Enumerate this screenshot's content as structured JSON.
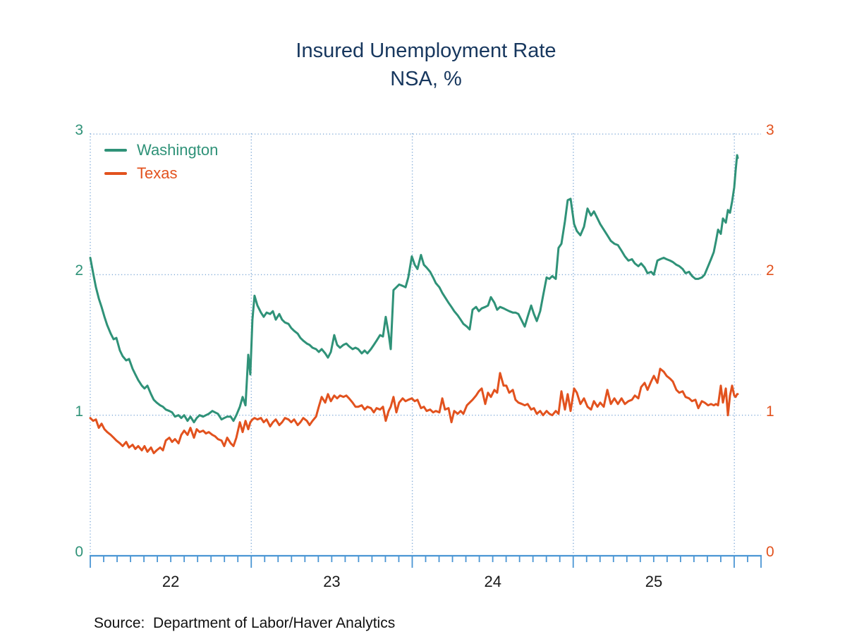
{
  "title": {
    "line1": "Insured Unemployment Rate",
    "line2": "NSA, %"
  },
  "legend": {
    "items": [
      {
        "label": "Washington",
        "color": "#2F9278"
      },
      {
        "label": "Texas",
        "color": "#E2521E"
      }
    ]
  },
  "axes": {
    "y_tick_labels": [
      "0",
      "1",
      "2",
      "3"
    ],
    "y_tick_values": [
      0,
      1,
      2,
      3
    ],
    "x_tick_labels": [
      "22",
      "23",
      "24",
      "25"
    ],
    "left_label_color": "#2F9278",
    "right_label_color": "#E2521E"
  },
  "source": {
    "text": "Source:  Department of Labor/Haver Analytics"
  },
  "colors": {
    "title": "#17375E",
    "axis_line": "#4B96D4",
    "grid_dotted": "#7CA7D6",
    "washington": "#2F9278",
    "texas": "#E2521E",
    "year_labels": "#1a1a1a"
  },
  "chart_data": {
    "type": "line",
    "title": "Insured Unemployment Rate",
    "subtitle": "NSA, %",
    "xlabel": "",
    "ylabel": "NSA, %",
    "xlim": [
      2022.0,
      2026.17
    ],
    "ylim": [
      0,
      3
    ],
    "y_ticks": [
      0,
      1,
      2,
      3
    ],
    "x_gridline_years": [
      2022,
      2023,
      2024,
      2025,
      2026
    ],
    "grid": "dotted",
    "legend_position": "top-left",
    "frequency": "weekly",
    "x": [
      2022.0,
      2022.018,
      2022.035,
      2022.053,
      2022.07,
      2022.088,
      2022.105,
      2022.127,
      2022.145,
      2022.162,
      2022.184,
      2022.201,
      2022.223,
      2022.241,
      2022.263,
      2022.28,
      2022.298,
      2022.32,
      2022.337,
      2022.355,
      2022.377,
      2022.394,
      2022.412,
      2022.434,
      2022.451,
      2022.469,
      2022.491,
      2022.508,
      2022.526,
      2022.548,
      2022.565,
      2022.583,
      2022.604,
      2022.622,
      2022.644,
      2022.661,
      2022.679,
      2022.701,
      2022.718,
      2022.736,
      2022.758,
      2022.775,
      2022.793,
      2022.815,
      2022.832,
      2022.85,
      2022.872,
      2022.889,
      2022.907,
      2022.929,
      2022.946,
      2022.964,
      2022.981,
      2022.994,
      2023.007,
      2023.02,
      2023.038,
      2023.06,
      2023.077,
      2023.095,
      2023.117,
      2023.134,
      2023.152,
      2023.174,
      2023.191,
      2023.209,
      2023.231,
      2023.248,
      2023.266,
      2023.288,
      2023.305,
      2023.323,
      2023.345,
      2023.362,
      2023.38,
      2023.402,
      2023.419,
      2023.437,
      2023.459,
      2023.476,
      2023.494,
      2023.515,
      2023.533,
      2023.551,
      2023.572,
      2023.59,
      2023.607,
      2023.629,
      2023.647,
      2023.664,
      2023.686,
      2023.704,
      2023.721,
      2023.743,
      2023.761,
      2023.778,
      2023.8,
      2023.818,
      2023.835,
      2023.853,
      2023.866,
      2023.883,
      2023.901,
      2023.918,
      2023.94,
      2023.958,
      2023.975,
      2023.997,
      2024.015,
      2024.032,
      2024.054,
      2024.072,
      2024.089,
      2024.111,
      2024.129,
      2024.146,
      2024.168,
      2024.186,
      2024.203,
      2024.225,
      2024.243,
      2024.26,
      2024.282,
      2024.3,
      2024.317,
      2024.339,
      2024.356,
      2024.374,
      2024.396,
      2024.413,
      2024.431,
      2024.453,
      2024.47,
      2024.488,
      2024.51,
      2024.527,
      2024.545,
      2024.567,
      2024.584,
      2024.602,
      2024.624,
      2024.641,
      2024.659,
      2024.681,
      2024.698,
      2024.716,
      2024.738,
      2024.755,
      2024.773,
      2024.794,
      2024.812,
      2024.834,
      2024.851,
      2024.869,
      2024.891,
      2024.908,
      2024.926,
      2024.948,
      2024.965,
      2024.983,
      2025.005,
      2025.022,
      2025.044,
      2025.066,
      2025.088,
      2025.11,
      2025.128,
      2025.15,
      2025.167,
      2025.189,
      2025.211,
      2025.233,
      2025.255,
      2025.277,
      2025.299,
      2025.32,
      2025.342,
      2025.364,
      2025.382,
      2025.404,
      2025.421,
      2025.443,
      2025.461,
      2025.483,
      2025.5,
      2025.522,
      2025.539,
      2025.561,
      2025.579,
      2025.601,
      2025.618,
      2025.64,
      2025.658,
      2025.679,
      2025.697,
      2025.719,
      2025.737,
      2025.758,
      2025.776,
      2025.798,
      2025.815,
      2025.837,
      2025.855,
      2025.872,
      2025.886,
      2025.899,
      2025.916,
      2025.929,
      2025.947,
      2025.96,
      2025.973,
      2025.986,
      2025.999,
      2026.008,
      2026.017,
      2026.021
    ],
    "series": [
      {
        "name": "Washington",
        "color": "#2F9278",
        "values": [
          2.12,
          2.01,
          1.91,
          1.83,
          1.77,
          1.7,
          1.64,
          1.58,
          1.54,
          1.55,
          1.46,
          1.42,
          1.39,
          1.4,
          1.33,
          1.29,
          1.25,
          1.21,
          1.19,
          1.21,
          1.15,
          1.11,
          1.09,
          1.07,
          1.06,
          1.04,
          1.03,
          1.02,
          0.99,
          1.0,
          0.98,
          1.0,
          0.96,
          0.99,
          0.95,
          0.98,
          1.0,
          0.99,
          1.0,
          1.01,
          1.03,
          1.02,
          1.01,
          0.97,
          0.98,
          0.99,
          0.99,
          0.96,
          1.0,
          1.06,
          1.13,
          1.07,
          1.43,
          1.29,
          1.68,
          1.85,
          1.78,
          1.73,
          1.7,
          1.73,
          1.72,
          1.74,
          1.68,
          1.72,
          1.68,
          1.66,
          1.65,
          1.62,
          1.6,
          1.58,
          1.55,
          1.53,
          1.51,
          1.5,
          1.48,
          1.47,
          1.45,
          1.47,
          1.44,
          1.41,
          1.45,
          1.57,
          1.5,
          1.48,
          1.5,
          1.51,
          1.49,
          1.47,
          1.48,
          1.47,
          1.44,
          1.46,
          1.44,
          1.47,
          1.5,
          1.53,
          1.57,
          1.56,
          1.7,
          1.58,
          1.47,
          1.89,
          1.91,
          1.93,
          1.92,
          1.91,
          1.98,
          2.13,
          2.07,
          2.04,
          2.14,
          2.07,
          2.05,
          2.02,
          1.98,
          1.94,
          1.91,
          1.87,
          1.84,
          1.8,
          1.77,
          1.74,
          1.71,
          1.68,
          1.65,
          1.63,
          1.61,
          1.75,
          1.77,
          1.74,
          1.76,
          1.77,
          1.78,
          1.84,
          1.8,
          1.75,
          1.77,
          1.76,
          1.75,
          1.74,
          1.73,
          1.73,
          1.72,
          1.67,
          1.63,
          1.7,
          1.78,
          1.72,
          1.67,
          1.74,
          1.85,
          1.98,
          1.97,
          1.99,
          1.97,
          2.19,
          2.22,
          2.38,
          2.53,
          2.54,
          2.36,
          2.31,
          2.28,
          2.34,
          2.47,
          2.42,
          2.45,
          2.4,
          2.36,
          2.32,
          2.28,
          2.24,
          2.22,
          2.21,
          2.17,
          2.13,
          2.1,
          2.11,
          2.08,
          2.06,
          2.08,
          2.05,
          2.01,
          2.02,
          2.0,
          2.1,
          2.11,
          2.12,
          2.11,
          2.1,
          2.09,
          2.07,
          2.06,
          2.04,
          2.01,
          2.02,
          1.99,
          1.97,
          1.97,
          1.98,
          2.0,
          2.06,
          2.11,
          2.16,
          2.24,
          2.32,
          2.29,
          2.4,
          2.37,
          2.46,
          2.44,
          2.52,
          2.62,
          2.74,
          2.85,
          2.83
        ]
      },
      {
        "name": "Texas",
        "color": "#E2521E",
        "values": [
          0.98,
          0.96,
          0.97,
          0.91,
          0.94,
          0.9,
          0.88,
          0.86,
          0.84,
          0.82,
          0.8,
          0.78,
          0.81,
          0.77,
          0.79,
          0.76,
          0.78,
          0.75,
          0.78,
          0.74,
          0.77,
          0.73,
          0.75,
          0.77,
          0.75,
          0.82,
          0.84,
          0.81,
          0.83,
          0.8,
          0.86,
          0.89,
          0.86,
          0.91,
          0.84,
          0.9,
          0.88,
          0.89,
          0.87,
          0.88,
          0.86,
          0.85,
          0.83,
          0.82,
          0.78,
          0.84,
          0.8,
          0.78,
          0.84,
          0.95,
          0.88,
          0.96,
          0.9,
          0.95,
          0.97,
          0.98,
          0.97,
          0.98,
          0.95,
          0.97,
          0.92,
          0.95,
          0.97,
          0.93,
          0.95,
          0.98,
          0.97,
          0.95,
          0.97,
          0.93,
          0.95,
          0.98,
          0.96,
          0.93,
          0.96,
          0.99,
          1.06,
          1.13,
          1.09,
          1.15,
          1.1,
          1.14,
          1.12,
          1.14,
          1.13,
          1.14,
          1.12,
          1.09,
          1.06,
          1.06,
          1.07,
          1.04,
          1.06,
          1.05,
          1.02,
          1.05,
          1.04,
          1.06,
          0.96,
          1.03,
          1.06,
          1.13,
          1.02,
          1.09,
          1.12,
          1.1,
          1.11,
          1.12,
          1.1,
          1.11,
          1.05,
          1.06,
          1.03,
          1.04,
          1.02,
          1.03,
          1.02,
          1.12,
          1.04,
          1.05,
          0.95,
          1.03,
          1.01,
          1.03,
          1.01,
          1.07,
          1.09,
          1.11,
          1.14,
          1.17,
          1.19,
          1.08,
          1.16,
          1.13,
          1.18,
          1.16,
          1.3,
          1.21,
          1.21,
          1.16,
          1.18,
          1.11,
          1.09,
          1.08,
          1.07,
          1.08,
          1.04,
          1.05,
          1.01,
          1.03,
          1.0,
          1.03,
          1.01,
          1.0,
          1.03,
          1.01,
          1.17,
          1.04,
          1.15,
          1.03,
          1.19,
          1.16,
          1.08,
          1.12,
          1.06,
          1.04,
          1.1,
          1.06,
          1.09,
          1.06,
          1.18,
          1.08,
          1.12,
          1.08,
          1.12,
          1.08,
          1.1,
          1.11,
          1.14,
          1.12,
          1.2,
          1.23,
          1.18,
          1.24,
          1.28,
          1.23,
          1.33,
          1.31,
          1.28,
          1.26,
          1.24,
          1.18,
          1.16,
          1.17,
          1.13,
          1.12,
          1.1,
          1.11,
          1.05,
          1.1,
          1.09,
          1.07,
          1.08,
          1.07,
          1.08,
          1.07,
          1.21,
          1.09,
          1.19,
          1.0,
          1.14,
          1.21,
          1.14,
          1.13,
          1.15,
          1.15
        ]
      }
    ]
  }
}
